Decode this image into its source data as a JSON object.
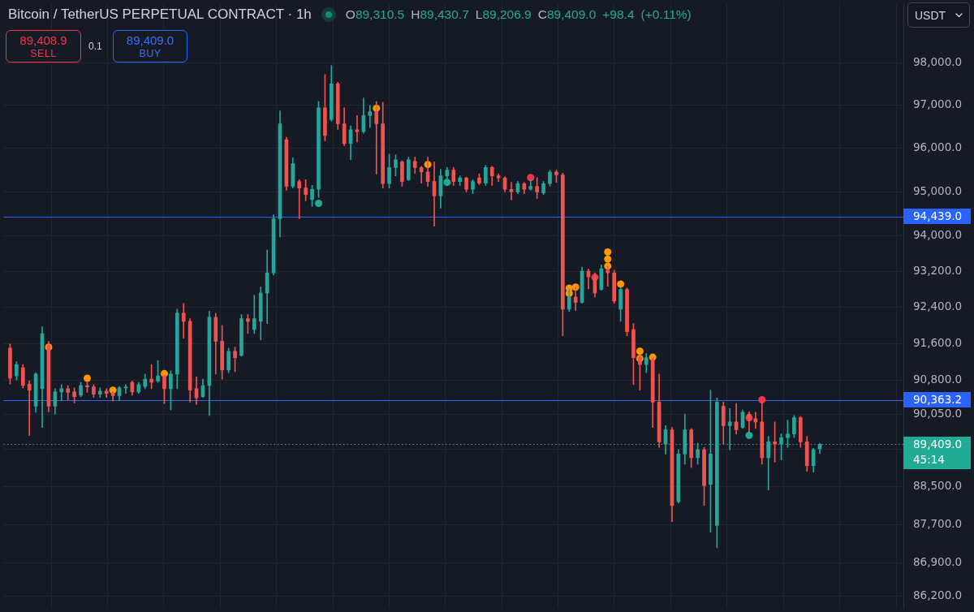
{
  "chart_data": {
    "type": "candlestick",
    "title": "Bitcoin / TetherUS PERPETUAL CONTRACT · 1h",
    "subtitle": "O89,310.5 H89,430.7 L89,206.9 C89,409.0 +98.4 (+0.11%)",
    "annotations": [
      "89,408.9",
      "SELL",
      "0.1",
      "89,409.0",
      "BUY",
      "USDT"
    ],
    "categories": [
      null,
      null,
      null,
      null,
      null,
      null,
      null,
      null,
      null,
      null,
      null,
      null,
      null,
      null,
      null,
      null,
      null,
      null,
      null,
      null,
      null,
      null,
      null,
      null,
      null,
      null,
      null,
      null,
      null,
      null,
      null,
      null,
      null,
      null,
      null,
      null,
      null,
      null,
      null,
      null,
      null,
      null,
      null,
      null,
      null,
      null,
      null,
      null,
      null,
      null,
      null,
      null,
      null,
      null,
      null,
      null,
      null,
      null,
      null,
      null,
      null,
      null,
      null,
      null,
      null,
      null,
      null,
      null,
      null,
      null,
      null,
      null,
      null,
      null,
      null,
      null,
      null,
      null,
      null,
      null,
      null,
      null,
      null,
      null,
      null,
      null,
      null,
      null,
      null,
      null,
      null,
      null,
      null,
      null,
      null,
      null,
      null,
      null,
      null,
      null,
      null,
      null,
      null,
      null,
      null,
      null,
      null,
      null,
      null,
      null,
      null,
      null,
      null,
      null,
      null,
      null,
      null,
      null,
      null,
      null,
      null,
      null,
      null,
      null,
      null,
      null,
      null,
      null,
      null,
      null,
      null,
      null,
      null,
      null,
      null,
      null,
      null,
      null,
      null
    ],
    "ohlc": [
      [
        91500,
        91590,
        90710,
        90840
      ],
      [
        90890,
        91200,
        90800,
        91140
      ],
      [
        91070,
        91140,
        90630,
        90680
      ],
      [
        90710,
        90780,
        89600,
        90580
      ],
      [
        90230,
        90960,
        90100,
        90930
      ],
      [
        90610,
        91970,
        89770,
        91820
      ],
      [
        91560,
        91650,
        90110,
        90230
      ],
      [
        90230,
        90610,
        90060,
        90540
      ],
      [
        90540,
        90700,
        90350,
        90610
      ],
      [
        90610,
        90680,
        90370,
        90530
      ],
      [
        90540,
        90630,
        90300,
        90440
      ],
      [
        90470,
        90750,
        90440,
        90680
      ],
      [
        90680,
        90770,
        90530,
        90650
      ],
      [
        90650,
        90700,
        90420,
        90490
      ],
      [
        90490,
        90630,
        90420,
        90560
      ],
      [
        90560,
        90610,
        90420,
        90510
      ],
      [
        90510,
        90540,
        90340,
        90460
      ],
      [
        90460,
        90660,
        90350,
        90630
      ],
      [
        90630,
        90700,
        90510,
        90650
      ],
      [
        90750,
        90780,
        90470,
        90540
      ],
      [
        90540,
        90750,
        90510,
        90700
      ],
      [
        90660,
        90930,
        90610,
        90820
      ],
      [
        90820,
        91140,
        90610,
        90750
      ],
      [
        90780,
        91230,
        90750,
        90890
      ],
      [
        90890,
        90910,
        90290,
        90610
      ],
      [
        90610,
        91000,
        90150,
        90930
      ],
      [
        90930,
        92360,
        90610,
        92270
      ],
      [
        92270,
        92490,
        91720,
        92090
      ],
      [
        92090,
        92150,
        90320,
        90580
      ],
      [
        90610,
        90870,
        90270,
        90410
      ],
      [
        90440,
        90820,
        90420,
        90680
      ],
      [
        90680,
        92310,
        90030,
        92180
      ],
      [
        92180,
        92270,
        90930,
        91650
      ],
      [
        91650,
        92000,
        90820,
        91020
      ],
      [
        91020,
        91500,
        90960,
        91430
      ],
      [
        91430,
        91520,
        90980,
        91290
      ],
      [
        91340,
        92240,
        91320,
        92150
      ],
      [
        92150,
        92240,
        91820,
        92090
      ],
      [
        91910,
        92670,
        91820,
        92150
      ],
      [
        92090,
        92850,
        91680,
        92720
      ],
      [
        92720,
        93680,
        92040,
        93170
      ],
      [
        93170,
        94480,
        93120,
        94390
      ],
      [
        94390,
        96870,
        93980,
        96570
      ],
      [
        96200,
        96260,
        95040,
        95130
      ],
      [
        95130,
        95780,
        95090,
        95650
      ],
      [
        95240,
        95280,
        94390,
        95090
      ],
      [
        95090,
        95280,
        94800,
        94940
      ],
      [
        94830,
        95150,
        94670,
        95060
      ],
      [
        95060,
        97090,
        94870,
        96940
      ],
      [
        96940,
        97720,
        96170,
        96300
      ],
      [
        96670,
        97930,
        96630,
        97500
      ],
      [
        97500,
        97540,
        96440,
        96570
      ],
      [
        96570,
        96940,
        96060,
        96110
      ],
      [
        96110,
        96520,
        95740,
        96430
      ],
      [
        96430,
        96760,
        96150,
        96390
      ],
      [
        96390,
        97170,
        96350,
        96760
      ],
      [
        96760,
        97000,
        96480,
        96850
      ],
      [
        96850,
        97090,
        95410,
        96570
      ],
      [
        96570,
        97070,
        95090,
        95190
      ],
      [
        95190,
        95870,
        95090,
        95560
      ],
      [
        95560,
        95850,
        95370,
        95740
      ],
      [
        95690,
        95720,
        95130,
        95240
      ],
      [
        95280,
        95800,
        95260,
        95740
      ],
      [
        95700,
        95800,
        95430,
        95560
      ],
      [
        95560,
        95590,
        95200,
        95460
      ],
      [
        95460,
        95800,
        95130,
        95240
      ],
      [
        95240,
        95690,
        94220,
        94910
      ],
      [
        94910,
        95520,
        94630,
        95370
      ],
      [
        95370,
        95560,
        95150,
        95500
      ],
      [
        95500,
        95560,
        95150,
        95240
      ],
      [
        95240,
        95370,
        95150,
        95320
      ],
      [
        95320,
        95340,
        95000,
        95060
      ],
      [
        95060,
        95280,
        94960,
        95240
      ],
      [
        95320,
        95410,
        95170,
        95200
      ],
      [
        95200,
        95610,
        95150,
        95560
      ],
      [
        95560,
        95590,
        95150,
        95370
      ],
      [
        95370,
        95410,
        95240,
        95320
      ],
      [
        95320,
        95350,
        95000,
        95060
      ],
      [
        95060,
        95220,
        94820,
        95000
      ],
      [
        95000,
        95240,
        94960,
        95190
      ],
      [
        95190,
        95220,
        94960,
        95060
      ],
      [
        95060,
        95280,
        95040,
        95130
      ],
      [
        95130,
        95330,
        94850,
        95000
      ],
      [
        94980,
        95240,
        94940,
        95190
      ],
      [
        95190,
        95500,
        95130,
        95460
      ],
      [
        95460,
        95500,
        95220,
        95390
      ],
      [
        95390,
        95430,
        91770,
        92360
      ],
      [
        92360,
        92810,
        92310,
        92630
      ],
      [
        92630,
        92850,
        92330,
        92510
      ],
      [
        92510,
        93300,
        92490,
        93210
      ],
      [
        93210,
        93260,
        92810,
        93080
      ],
      [
        93080,
        93170,
        92630,
        92720
      ],
      [
        92800,
        93350,
        92780,
        93260
      ],
      [
        93230,
        93320,
        92870,
        93170
      ],
      [
        93170,
        93230,
        92490,
        92540
      ],
      [
        92360,
        92850,
        92090,
        92800
      ],
      [
        92800,
        92830,
        91770,
        91860
      ],
      [
        91910,
        92040,
        90700,
        91290
      ],
      [
        91290,
        91320,
        90580,
        91140
      ],
      [
        91140,
        91380,
        90960,
        91290
      ],
      [
        91250,
        91290,
        89770,
        90320
      ],
      [
        90320,
        90930,
        89340,
        89460
      ],
      [
        89410,
        89810,
        89200,
        89720
      ],
      [
        89720,
        89770,
        87760,
        88100
      ],
      [
        88180,
        89290,
        88150,
        89200
      ],
      [
        89200,
        90060,
        88980,
        89720
      ],
      [
        89720,
        89750,
        88910,
        89120
      ],
      [
        89120,
        89430,
        88980,
        89290
      ],
      [
        89290,
        89340,
        88100,
        88520
      ],
      [
        88550,
        90580,
        87540,
        89200
      ],
      [
        87680,
        90410,
        87210,
        90320
      ],
      [
        90230,
        90320,
        89410,
        89810
      ],
      [
        89810,
        90180,
        89290,
        89890
      ],
      [
        89890,
        90290,
        89630,
        89720
      ],
      [
        89770,
        90150,
        89750,
        90100
      ],
      [
        90060,
        90110,
        89670,
        89960
      ],
      [
        89960,
        90100,
        89750,
        89890
      ],
      [
        89890,
        90320,
        88980,
        89120
      ],
      [
        89120,
        89580,
        88430,
        89460
      ],
      [
        89460,
        89890,
        89030,
        89410
      ],
      [
        89410,
        89630,
        89070,
        89550
      ],
      [
        89550,
        89930,
        89340,
        89630
      ],
      [
        89630,
        90030,
        89550,
        89980
      ],
      [
        89980,
        90010,
        89340,
        89460
      ],
      [
        89460,
        89580,
        88830,
        88950
      ],
      [
        88950,
        89320,
        88810,
        89290
      ],
      [
        89310.5,
        89430.7,
        89206.9,
        89409.0
      ],
      null,
      null,
      null,
      null,
      null,
      null,
      null,
      null,
      null,
      null,
      null,
      null
    ],
    "colors": [
      "#ef5350",
      "#26a69a",
      "#ef5350",
      "#ef5350",
      "#26a69a",
      "#26a69a",
      "#ef5350",
      "#26a69a",
      "#26a69a",
      "#ef5350",
      "#ef5350",
      "#26a69a",
      "#ef5350",
      "#ef5350",
      "#26a69a",
      "#ef5350",
      "#ef5350",
      "#26a69a",
      "#26a69a",
      "#ef5350",
      "#26a69a",
      "#26a69a",
      "#ef5350",
      "#26a69a",
      "#ef5350",
      "#26a69a",
      "#26a69a",
      "#ef5350",
      "#ef5350",
      "#ef5350",
      "#26a69a",
      "#26a69a",
      "#ef5350",
      "#ef5350",
      "#26a69a",
      "#ef5350",
      "#26a69a",
      "#ef5350",
      "#26a69a",
      "#26a69a",
      "#26a69a",
      "#26a69a",
      "#26a69a",
      "#ef5350",
      "#26a69a",
      "#ef5350",
      "#ef5350",
      "#26a69a",
      "#26a69a",
      "#ef5350",
      "#26a69a",
      "#ef5350",
      "#ef5350",
      "#26a69a",
      "#ef5350",
      "#26a69a",
      "#26a69a",
      "#ef5350",
      "#ef5350",
      "#26a69a",
      "#26a69a",
      "#ef5350",
      "#26a69a",
      "#ef5350",
      "#ef5350",
      "#ef5350",
      "#ef5350",
      "#26a69a",
      "#26a69a",
      "#ef5350",
      "#26a69a",
      "#ef5350",
      "#26a69a",
      "#ef5350",
      "#26a69a",
      "#ef5350",
      "#ef5350",
      "#ef5350",
      "#ef5350",
      "#26a69a",
      "#ef5350",
      "#26a69a",
      "#ef5350",
      "#26a69a",
      "#26a69a",
      "#ef5350",
      "#ef5350",
      "#26a69a",
      "#ef5350",
      "#26a69a",
      "#ef5350",
      "#ef5350",
      "#26a69a",
      "#ef5350",
      "#ef5350",
      "#26a69a",
      "#ef5350",
      "#ef5350",
      "#ef5350",
      "#26a69a",
      "#ef5350",
      "#ef5350",
      "#26a69a",
      "#ef5350",
      "#26a69a",
      "#26a69a",
      "#ef5350",
      "#26a69a",
      "#ef5350",
      "#26a69a",
      "#26a69a",
      "#ef5350",
      "#26a69a",
      "#ef5350",
      "#26a69a",
      "#ef5350",
      "#ef5350",
      "#ef5350",
      "#26a69a",
      "#ef5350",
      "#26a69a",
      "#26a69a",
      "#26a69a",
      "#ef5350",
      "#ef5350",
      "#26a69a",
      "#26a69a",
      null,
      null,
      null,
      null,
      null,
      null,
      null,
      null,
      null,
      null,
      null,
      null
    ],
    "series": [
      {
        "type": "scatter",
        "color": "#ff9800",
        "values": [
          null,
          null,
          null,
          null,
          null,
          null,
          91520,
          null,
          null,
          null,
          null,
          null,
          90840,
          null,
          null,
          null,
          90580,
          null,
          null,
          null,
          null,
          null,
          null,
          null,
          90940,
          null,
          null,
          null,
          null,
          null,
          null,
          null,
          null,
          null,
          null,
          null,
          null,
          null,
          null,
          null,
          null,
          null,
          null,
          null,
          null,
          null,
          null,
          null,
          null,
          null,
          null,
          null,
          null,
          null,
          null,
          null,
          null,
          96930,
          null,
          null,
          null,
          null,
          null,
          null,
          null,
          95630,
          null,
          null,
          null,
          null,
          null,
          null,
          null,
          null,
          null,
          null,
          null,
          null,
          null,
          null,
          null,
          null,
          null,
          null,
          null,
          null,
          null,
          92710,
          92850,
          null,
          null,
          null,
          null,
          93320,
          null,
          92920,
          null,
          null,
          91270,
          null,
          91300,
          null,
          null,
          null,
          null,
          null,
          null,
          null,
          null,
          null,
          null,
          null,
          null,
          null,
          null,
          null,
          null,
          null,
          null,
          null,
          null,
          null,
          null,
          null,
          null,
          null,
          null,
          null,
          null,
          null,
          null,
          null,
          null,
          null,
          null,
          null,
          null,
          null,
          null
        ]
      },
      {
        "type": "scatter",
        "color": "#ff9800",
        "values": [
          null,
          null,
          null,
          null,
          null,
          null,
          null,
          null,
          null,
          null,
          null,
          null,
          null,
          null,
          null,
          null,
          null,
          null,
          null,
          null,
          null,
          null,
          null,
          null,
          null,
          null,
          null,
          null,
          null,
          null,
          null,
          null,
          null,
          null,
          null,
          null,
          null,
          null,
          null,
          null,
          null,
          null,
          null,
          null,
          null,
          null,
          null,
          null,
          null,
          null,
          null,
          null,
          null,
          null,
          null,
          null,
          null,
          null,
          null,
          null,
          null,
          null,
          null,
          null,
          null,
          null,
          null,
          null,
          null,
          null,
          null,
          null,
          null,
          null,
          null,
          null,
          null,
          null,
          null,
          null,
          null,
          null,
          null,
          null,
          null,
          null,
          null,
          92830,
          null,
          null,
          null,
          null,
          null,
          93480,
          null,
          null,
          null,
          null,
          91430,
          null,
          null,
          null,
          null,
          null,
          null,
          null,
          null,
          null,
          null,
          null,
          null,
          null,
          null,
          null,
          null,
          null,
          null,
          null,
          null,
          null,
          null,
          null,
          null,
          null,
          null,
          null,
          null,
          null,
          null,
          null,
          null,
          null,
          null,
          null,
          null,
          null,
          null,
          null,
          null
        ]
      },
      {
        "type": "scatter",
        "color": "#ff9800",
        "values": [
          null,
          null,
          null,
          null,
          null,
          null,
          null,
          null,
          null,
          null,
          null,
          null,
          null,
          null,
          null,
          null,
          null,
          null,
          null,
          null,
          null,
          null,
          null,
          null,
          null,
          null,
          null,
          null,
          null,
          null,
          null,
          null,
          null,
          null,
          null,
          null,
          null,
          null,
          null,
          null,
          null,
          null,
          null,
          null,
          null,
          null,
          null,
          null,
          null,
          null,
          null,
          null,
          null,
          null,
          null,
          null,
          null,
          null,
          null,
          null,
          null,
          null,
          null,
          null,
          null,
          null,
          null,
          null,
          null,
          null,
          null,
          null,
          null,
          null,
          null,
          null,
          null,
          null,
          null,
          null,
          null,
          null,
          null,
          null,
          null,
          null,
          null,
          null,
          null,
          null,
          null,
          null,
          null,
          93640,
          null,
          null,
          null,
          null,
          null,
          null,
          null,
          null,
          null,
          null,
          null,
          null,
          null,
          null,
          null,
          null,
          null,
          null,
          null,
          null,
          null,
          null,
          null,
          null,
          null,
          null,
          null,
          null,
          null,
          null,
          null,
          null,
          null,
          null,
          null,
          null,
          null,
          null,
          null,
          null,
          null,
          null,
          null,
          null,
          null
        ]
      },
      {
        "type": "scatter",
        "color": "#f23645",
        "values": [
          null,
          null,
          null,
          null,
          null,
          null,
          null,
          null,
          null,
          null,
          null,
          null,
          null,
          null,
          null,
          null,
          null,
          null,
          null,
          null,
          null,
          null,
          null,
          null,
          null,
          null,
          null,
          null,
          null,
          null,
          null,
          null,
          null,
          null,
          null,
          null,
          null,
          null,
          null,
          null,
          null,
          null,
          null,
          null,
          null,
          null,
          null,
          null,
          null,
          null,
          null,
          null,
          null,
          null,
          null,
          null,
          null,
          null,
          null,
          null,
          null,
          null,
          null,
          null,
          null,
          null,
          null,
          null,
          null,
          null,
          null,
          null,
          null,
          null,
          null,
          null,
          null,
          null,
          null,
          null,
          null,
          95330,
          null,
          null,
          null,
          null,
          null,
          null,
          null,
          null,
          null,
          93070,
          null,
          null,
          null,
          null,
          null,
          null,
          null,
          null,
          null,
          null,
          null,
          null,
          null,
          null,
          null,
          null,
          null,
          null,
          null,
          null,
          null,
          null,
          null,
          89980,
          null,
          90370,
          null,
          null,
          null,
          null,
          null,
          null,
          null,
          null,
          null,
          null,
          null,
          null,
          null,
          null,
          null,
          null,
          null,
          null,
          null,
          null,
          null
        ]
      },
      {
        "type": "scatter",
        "color": "#22ab94",
        "values": [
          null,
          null,
          null,
          null,
          null,
          null,
          null,
          null,
          null,
          null,
          null,
          null,
          null,
          null,
          null,
          null,
          null,
          null,
          null,
          null,
          null,
          null,
          null,
          null,
          null,
          null,
          null,
          null,
          null,
          null,
          null,
          null,
          null,
          null,
          null,
          null,
          null,
          null,
          null,
          null,
          null,
          null,
          null,
          null,
          null,
          null,
          null,
          null,
          94740,
          null,
          null,
          null,
          null,
          null,
          null,
          null,
          null,
          null,
          null,
          null,
          null,
          null,
          null,
          null,
          null,
          null,
          null,
          null,
          95220,
          null,
          null,
          null,
          null,
          null,
          null,
          null,
          null,
          null,
          null,
          null,
          null,
          null,
          null,
          null,
          null,
          null,
          null,
          null,
          null,
          null,
          null,
          null,
          null,
          null,
          null,
          null,
          null,
          null,
          null,
          null,
          null,
          null,
          null,
          null,
          null,
          null,
          null,
          null,
          null,
          null,
          null,
          null,
          null,
          null,
          null,
          89600,
          null,
          null,
          null,
          null,
          null,
          null,
          null,
          null,
          null,
          null,
          null,
          null,
          null,
          null,
          null,
          null,
          null,
          null,
          null,
          null,
          null,
          null,
          null
        ]
      }
    ],
    "ylim": [
      85950,
      99400
    ],
    "yticks": [
      {
        "value": 98000,
        "label": "98,000.0"
      },
      {
        "value": 97000,
        "label": "97,000.0"
      },
      {
        "value": 96000,
        "label": "96,000.0"
      },
      {
        "value": 95000,
        "label": "95,000.0"
      },
      {
        "value": 94000,
        "label": "94,000.0"
      },
      {
        "value": 93200,
        "label": "93,200.0"
      },
      {
        "value": 92400,
        "label": "92,400.0"
      },
      {
        "value": 91600,
        "label": "91,600.0"
      },
      {
        "value": 90800,
        "label": "90,800.0"
      },
      {
        "value": 90050,
        "label": "90,050.0"
      },
      {
        "value": 89300,
        "label": null
      },
      {
        "value": 88500,
        "label": "88,500.0"
      },
      {
        "value": 87700,
        "label": "87,700.0"
      },
      {
        "value": 86900,
        "label": "86,900.0"
      },
      {
        "value": 86200,
        "label": "86,200.0"
      }
    ],
    "ref_lines": [
      {
        "axis": "y",
        "value": 94439.0,
        "label": "94,439.0",
        "color": "#2962ff"
      },
      {
        "axis": "y",
        "value": 90363.2,
        "label": "90,363.2",
        "color": "#2962ff"
      },
      {
        "axis": "y",
        "value": 89409.0,
        "label": "89,409.0\n45:14",
        "color": "#22ab94",
        "line_style": "dotted"
      }
    ],
    "log": "y",
    "grid": true,
    "marker": "circle",
    "tick_labels": "y"
  }
}
